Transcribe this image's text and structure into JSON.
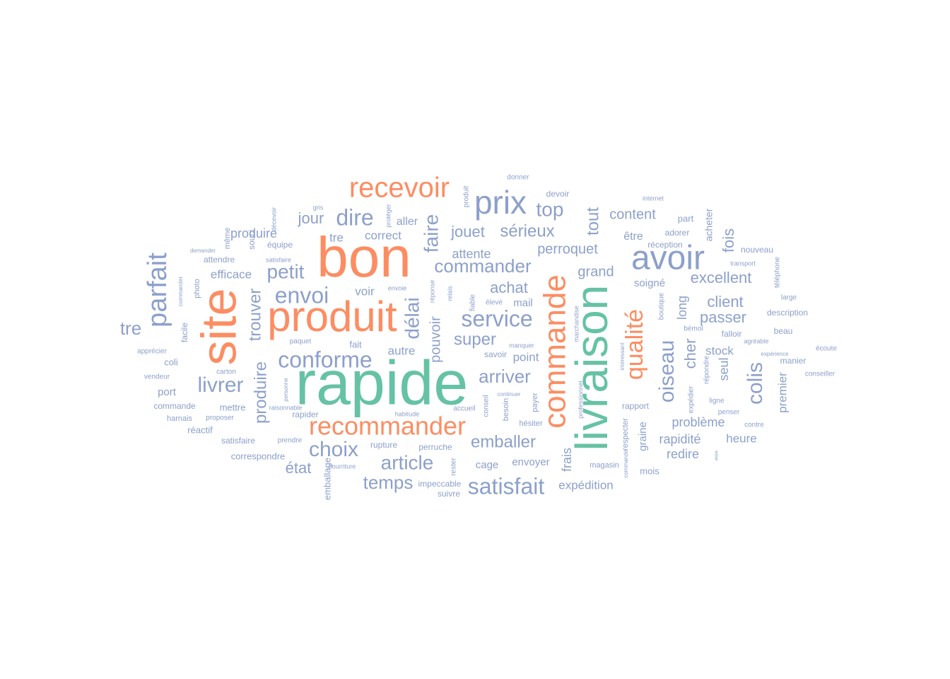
{
  "colors": {
    "teal": "#66c2a5",
    "orange": "#fc8d62",
    "blue": "#8da0cb"
  },
  "words": [
    {
      "text": "rapide",
      "color": "teal"
    },
    {
      "text": "livraison",
      "color": "teal"
    },
    {
      "text": "bon",
      "color": "orange"
    },
    {
      "text": "produit",
      "color": "orange"
    },
    {
      "text": "site",
      "color": "orange"
    },
    {
      "text": "commande",
      "color": "orange"
    },
    {
      "text": "recevoir",
      "color": "orange"
    },
    {
      "text": "recommander",
      "color": "orange"
    },
    {
      "text": "qualité",
      "color": "orange"
    },
    {
      "text": "avoir",
      "color": "blue"
    },
    {
      "text": "prix",
      "color": "blue"
    },
    {
      "text": "parfait",
      "color": "blue"
    },
    {
      "text": "service",
      "color": "blue"
    },
    {
      "text": "oiseau",
      "color": "blue"
    },
    {
      "text": "conforme",
      "color": "blue"
    },
    {
      "text": "envoi",
      "color": "blue"
    },
    {
      "text": "colis",
      "color": "blue"
    },
    {
      "text": "dire",
      "color": "blue"
    },
    {
      "text": "satisfait",
      "color": "blue"
    },
    {
      "text": "commander",
      "color": "blue"
    },
    {
      "text": "article",
      "color": "blue"
    },
    {
      "text": "livrer",
      "color": "blue"
    },
    {
      "text": "choix",
      "color": "blue"
    },
    {
      "text": "temps",
      "color": "blue"
    },
    {
      "text": "délai",
      "color": "blue"
    },
    {
      "text": "faire",
      "color": "blue"
    },
    {
      "text": "petit",
      "color": "blue"
    },
    {
      "text": "top",
      "color": "blue"
    },
    {
      "text": "tout",
      "color": "blue"
    },
    {
      "text": "arriver",
      "color": "blue"
    },
    {
      "text": "jouet",
      "color": "blue"
    },
    {
      "text": "sérieux",
      "color": "blue"
    },
    {
      "text": "excellent",
      "color": "blue"
    },
    {
      "text": "emballer",
      "color": "blue"
    },
    {
      "text": "super",
      "color": "blue"
    },
    {
      "text": "tre",
      "color": "blue"
    },
    {
      "text": "produire",
      "color": "blue"
    },
    {
      "text": "trouver",
      "color": "blue"
    },
    {
      "text": "passer",
      "color": "blue"
    },
    {
      "text": "client",
      "color": "blue"
    },
    {
      "text": "achat",
      "color": "blue"
    },
    {
      "text": "perroquet",
      "color": "blue"
    },
    {
      "text": "content",
      "color": "blue"
    },
    {
      "text": "fois",
      "color": "blue"
    },
    {
      "text": "cher",
      "color": "blue"
    },
    {
      "text": "jour",
      "color": "blue"
    },
    {
      "text": "grand",
      "color": "blue"
    },
    {
      "text": "état",
      "color": "blue"
    },
    {
      "text": "pouvoir",
      "color": "blue"
    },
    {
      "text": "frais",
      "color": "blue"
    },
    {
      "text": "rapidité",
      "color": "blue"
    },
    {
      "text": "problème",
      "color": "blue"
    },
    {
      "text": "attente",
      "color": "blue"
    },
    {
      "text": "redire",
      "color": "blue"
    },
    {
      "text": "heure",
      "color": "blue"
    },
    {
      "text": "stock",
      "color": "blue"
    },
    {
      "text": "seul",
      "color": "blue"
    },
    {
      "text": "premier",
      "color": "blue"
    },
    {
      "text": "long",
      "color": "blue"
    },
    {
      "text": "produire",
      "color": "blue"
    },
    {
      "text": "voir",
      "color": "blue"
    },
    {
      "text": "autre",
      "color": "blue"
    },
    {
      "text": "correct",
      "color": "blue"
    },
    {
      "text": "tre",
      "color": "blue"
    },
    {
      "text": "aller",
      "color": "blue"
    },
    {
      "text": "point",
      "color": "blue"
    },
    {
      "text": "mail",
      "color": "blue"
    },
    {
      "text": "être",
      "color": "blue"
    },
    {
      "text": "soigné",
      "color": "blue"
    },
    {
      "text": "expédition",
      "color": "blue"
    },
    {
      "text": "cage",
      "color": "blue"
    },
    {
      "text": "envoyer",
      "color": "blue"
    },
    {
      "text": "graine",
      "color": "blue"
    },
    {
      "text": "efficace",
      "color": "blue"
    },
    {
      "text": "port",
      "color": "blue"
    },
    {
      "text": "acheter",
      "color": "blue"
    },
    {
      "text": "souci",
      "color": "blue"
    },
    {
      "text": "emballage",
      "color": "blue"
    },
    {
      "text": "part",
      "color": "blue"
    },
    {
      "text": "adorer",
      "color": "blue"
    },
    {
      "text": "réception",
      "color": "blue"
    },
    {
      "text": "coli",
      "color": "blue"
    },
    {
      "text": "mettre",
      "color": "blue"
    },
    {
      "text": "réactif",
      "color": "blue"
    },
    {
      "text": "facile",
      "color": "blue"
    },
    {
      "text": "rapport",
      "color": "blue"
    },
    {
      "text": "mois",
      "color": "blue"
    },
    {
      "text": "devoir",
      "color": "blue"
    },
    {
      "text": "savoir",
      "color": "blue"
    },
    {
      "text": "fait",
      "color": "blue"
    },
    {
      "text": "équipe",
      "color": "blue"
    },
    {
      "text": "attendre",
      "color": "blue"
    },
    {
      "text": "perruche",
      "color": "blue"
    },
    {
      "text": "rupture",
      "color": "blue"
    },
    {
      "text": "satisfaire",
      "color": "blue"
    },
    {
      "text": "correspondre",
      "color": "blue"
    },
    {
      "text": "rapider",
      "color": "blue"
    },
    {
      "text": "commande",
      "color": "blue"
    },
    {
      "text": "impeccable",
      "color": "blue"
    },
    {
      "text": "suivre",
      "color": "blue"
    },
    {
      "text": "beau",
      "color": "blue"
    },
    {
      "text": "description",
      "color": "blue"
    },
    {
      "text": "nouveau",
      "color": "blue"
    },
    {
      "text": "falloir",
      "color": "blue"
    },
    {
      "text": "manier",
      "color": "blue"
    },
    {
      "text": "respecter",
      "color": "blue"
    },
    {
      "text": "magasin",
      "color": "blue"
    },
    {
      "text": "hésiter",
      "color": "blue"
    },
    {
      "text": "payer",
      "color": "blue"
    },
    {
      "text": "besoin",
      "color": "blue"
    },
    {
      "text": "conseil",
      "color": "blue"
    },
    {
      "text": "accueil",
      "color": "blue"
    },
    {
      "text": "rester",
      "color": "blue"
    },
    {
      "text": "élevé",
      "color": "blue"
    },
    {
      "text": "fiable",
      "color": "blue"
    },
    {
      "text": "relais",
      "color": "blue"
    },
    {
      "text": "réponse",
      "color": "blue"
    },
    {
      "text": "même",
      "color": "blue"
    },
    {
      "text": "photo",
      "color": "blue"
    },
    {
      "text": "harnais",
      "color": "blue"
    },
    {
      "text": "proposer",
      "color": "blue"
    },
    {
      "text": "prendre",
      "color": "blue"
    },
    {
      "text": "carton",
      "color": "blue"
    },
    {
      "text": "vendeur",
      "color": "blue"
    },
    {
      "text": "apprécier",
      "color": "blue"
    },
    {
      "text": "paquet",
      "color": "blue"
    },
    {
      "text": "ligne",
      "color": "blue"
    },
    {
      "text": "boutique",
      "color": "blue"
    },
    {
      "text": "bémol",
      "color": "blue"
    },
    {
      "text": "penser",
      "color": "blue"
    },
    {
      "text": "contre",
      "color": "blue"
    },
    {
      "text": "répondre",
      "color": "blue"
    },
    {
      "text": "large",
      "color": "blue"
    },
    {
      "text": "téléphone",
      "color": "blue"
    },
    {
      "text": "écoute",
      "color": "blue"
    },
    {
      "text": "conseiller",
      "color": "blue"
    },
    {
      "text": "expédier",
      "color": "blue"
    },
    {
      "text": "donner",
      "color": "blue"
    },
    {
      "text": "produit",
      "color": "blue"
    },
    {
      "text": "gris",
      "color": "blue"
    },
    {
      "text": "décevoir",
      "color": "blue"
    },
    {
      "text": "satisfaire",
      "color": "blue"
    },
    {
      "text": "demander",
      "color": "blue"
    },
    {
      "text": "commander",
      "color": "blue"
    },
    {
      "text": "protéger",
      "color": "blue"
    },
    {
      "text": "envoie",
      "color": "blue"
    },
    {
      "text": "internet",
      "color": "blue"
    },
    {
      "text": "transport",
      "color": "blue"
    },
    {
      "text": "agréable",
      "color": "blue"
    },
    {
      "text": "expérience",
      "color": "blue"
    },
    {
      "text": "marchandise",
      "color": "blue"
    },
    {
      "text": "professionnel",
      "color": "blue"
    },
    {
      "text": "intéressant",
      "color": "blue"
    },
    {
      "text": "commande",
      "color": "blue"
    },
    {
      "text": "manquer",
      "color": "blue"
    },
    {
      "text": "continuer",
      "color": "blue"
    },
    {
      "text": "nourriture",
      "color": "blue"
    },
    {
      "text": "habitude",
      "color": "blue"
    },
    {
      "text": "raisonnable",
      "color": "blue"
    },
    {
      "text": "personne",
      "color": "blue"
    },
    {
      "text": "étoile",
      "color": "blue"
    },
    {
      "text": "communication",
      "color": "blue"
    }
  ]
}
